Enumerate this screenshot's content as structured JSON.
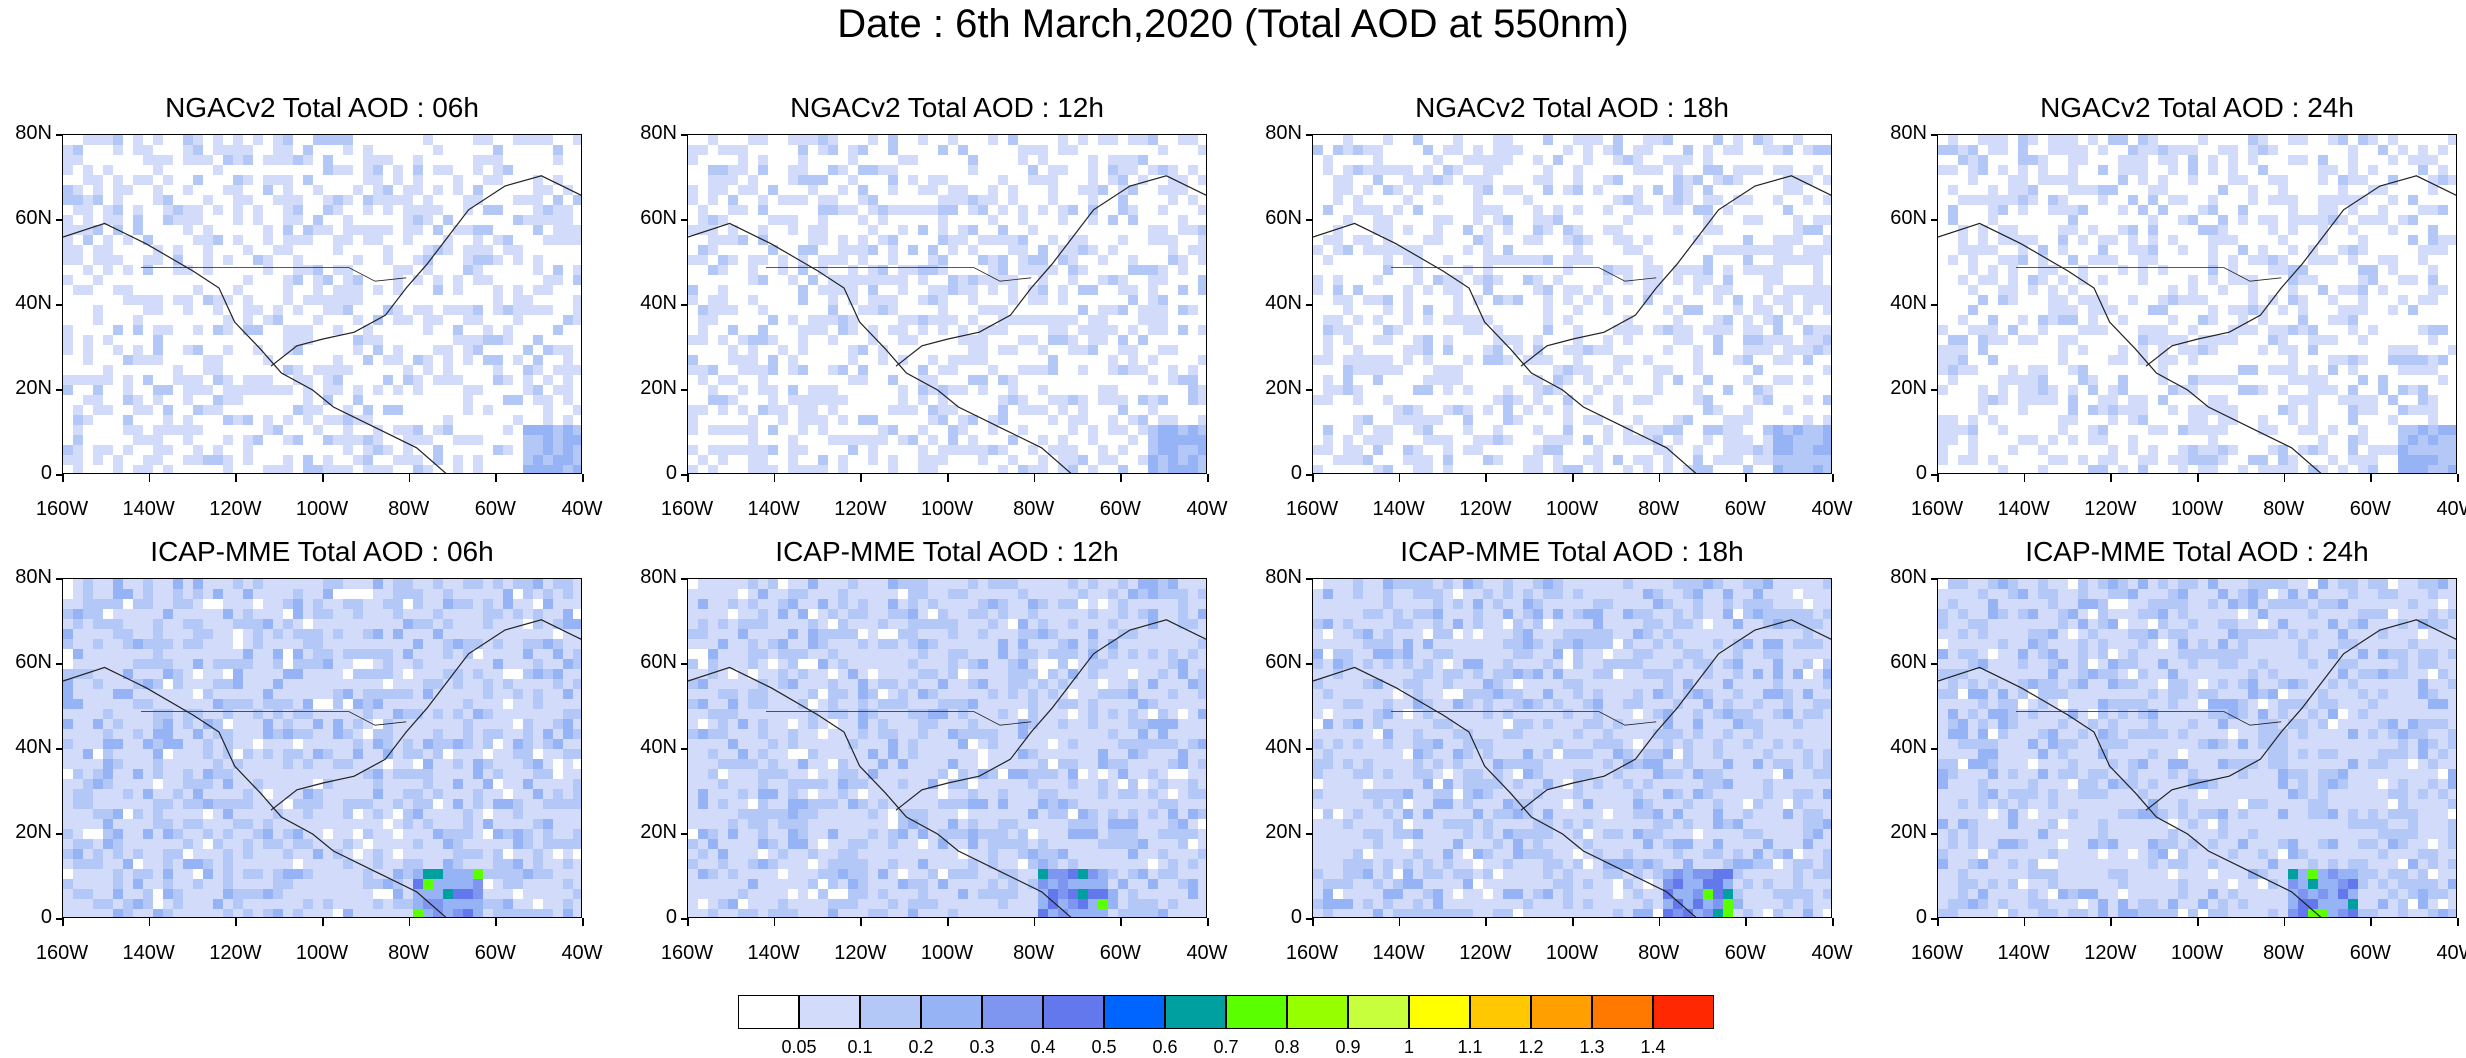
{
  "title": "Date : 6th March,2020 (Total AOD at 550nm)",
  "panels": [
    {
      "title": "NGACv2 Total AOD : 06h",
      "model": "NGACv2"
    },
    {
      "title": "NGACv2 Total AOD : 12h",
      "model": "NGACv2"
    },
    {
      "title": "NGACv2 Total AOD : 18h",
      "model": "NGACv2"
    },
    {
      "title": "NGACv2 Total AOD : 24h",
      "model": "NGACv2"
    },
    {
      "title": "ICAP-MME Total AOD : 06h",
      "model": "ICAP-MME"
    },
    {
      "title": "ICAP-MME Total AOD : 12h",
      "model": "ICAP-MME"
    },
    {
      "title": "ICAP-MME Total AOD : 18h",
      "model": "ICAP-MME"
    },
    {
      "title": "ICAP-MME Total AOD : 24h",
      "model": "ICAP-MME"
    }
  ],
  "lat_labels": [
    "80N",
    "60N",
    "40N",
    "20N",
    "0"
  ],
  "lon_labels": [
    "160W",
    "140W",
    "120W",
    "100W",
    "80W",
    "60W",
    "40W"
  ],
  "colorbar": {
    "colors": [
      "#ffffff",
      "#d2dcfa",
      "#b4c8f8",
      "#96b4f5",
      "#7f96f0",
      "#6478ee",
      "#0064ff",
      "#00a0a0",
      "#5aff00",
      "#96ff00",
      "#c8ff3c",
      "#ffff00",
      "#ffc800",
      "#ffa000",
      "#ff7800",
      "#ff2800"
    ],
    "labels": [
      "0.05",
      "0.1",
      "0.2",
      "0.3",
      "0.4",
      "0.5",
      "0.6",
      "0.7",
      "0.8",
      "0.9",
      "1",
      "1.1",
      "1.2",
      "1.3",
      "1.4"
    ]
  }
}
